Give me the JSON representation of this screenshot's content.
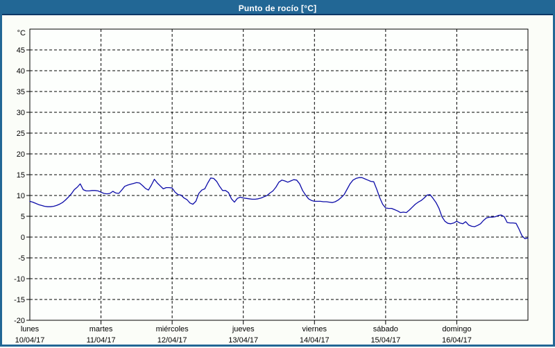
{
  "window": {
    "title": "Punto de rocío [°C]"
  },
  "colors": {
    "frame": "#226795",
    "titlebar_bg": "#226795",
    "titlebar_separator": "#0d3766",
    "title_text": "#ffffff",
    "content_bg": "#fbfdf8",
    "plot_bg": "#fdfffd",
    "plot_border": "#000000",
    "gridline": "#000000",
    "tick_label": "#000000",
    "line": "#0b0ba8"
  },
  "chart_data": {
    "type": "line",
    "title": "Punto de rocío [°C]",
    "y_unit_label": "°C",
    "ylabel": "",
    "xlabel": "",
    "ylim": [
      -20,
      50
    ],
    "y_ticks": [
      45,
      40,
      35,
      30,
      25,
      20,
      15,
      10,
      5,
      0,
      -5,
      -10,
      -15,
      -20
    ],
    "grid": "dashed",
    "legend": "none",
    "x_axis": {
      "tick_alignment": "day-start",
      "days": [
        {
          "name": "lunes",
          "date": "10/04/17"
        },
        {
          "name": "martes",
          "date": "11/04/17"
        },
        {
          "name": "miércoles",
          "date": "12/04/17"
        },
        {
          "name": "jueves",
          "date": "13/04/17"
        },
        {
          "name": "viernes",
          "date": "14/04/17"
        },
        {
          "name": "sábado",
          "date": "15/04/17"
        },
        {
          "name": "domingo",
          "date": "16/04/17"
        }
      ]
    },
    "series": [
      {
        "name": "Punto de rocío",
        "color": "#0b0ba8",
        "sampling": "hourly",
        "points_per_day": 24,
        "start": "lunes 10/04/17 00:00",
        "values": [
          8.6,
          8.4,
          8.1,
          7.8,
          7.6,
          7.4,
          7.3,
          7.3,
          7.4,
          7.6,
          7.9,
          8.3,
          8.9,
          9.6,
          10.4,
          11.4,
          12.0,
          12.8,
          11.4,
          11.1,
          11.1,
          11.2,
          11.2,
          11.1,
          10.8,
          10.5,
          10.4,
          10.5,
          11.0,
          10.6,
          10.5,
          11.3,
          12.2,
          12.5,
          12.7,
          12.9,
          13.1,
          13.0,
          12.4,
          11.7,
          11.3,
          12.5,
          13.9,
          13.0,
          12.3,
          11.6,
          11.9,
          11.9,
          11.8,
          10.8,
          10.2,
          10.1,
          9.4,
          9.0,
          8.2,
          7.9,
          8.6,
          10.5,
          11.3,
          11.6,
          13.0,
          14.2,
          14.1,
          13.4,
          12.2,
          11.2,
          11.2,
          10.7,
          9.2,
          8.4,
          9.3,
          9.6,
          9.4,
          9.3,
          9.2,
          9.1,
          9.1,
          9.2,
          9.4,
          9.7,
          10.0,
          10.6,
          11.1,
          12.0,
          13.2,
          13.7,
          13.5,
          13.2,
          13.5,
          13.8,
          13.7,
          12.8,
          11.2,
          10.1,
          9.2,
          8.8,
          8.6,
          8.6,
          8.6,
          8.5,
          8.5,
          8.4,
          8.3,
          8.5,
          8.9,
          9.5,
          10.2,
          11.5,
          12.8,
          13.7,
          14.1,
          14.3,
          14.3,
          14.0,
          13.7,
          13.4,
          13.3,
          11.5,
          9.5,
          7.9,
          7.0,
          6.9,
          6.9,
          6.6,
          6.3,
          5.9,
          6.0,
          5.9,
          6.5,
          7.2,
          7.9,
          8.4,
          8.8,
          9.4,
          10.1,
          10.2,
          9.3,
          8.3,
          6.9,
          4.9,
          3.8,
          3.3,
          3.2,
          3.4,
          3.8,
          3.4,
          3.2,
          3.7,
          2.9,
          2.6,
          2.5,
          2.8,
          3.2,
          4.0,
          4.6,
          4.8,
          4.8,
          4.9,
          5.2,
          5.3,
          4.9,
          3.5,
          3.4,
          3.4,
          3.3,
          1.9,
          0.3,
          -0.4,
          -0.2
        ]
      }
    ]
  }
}
